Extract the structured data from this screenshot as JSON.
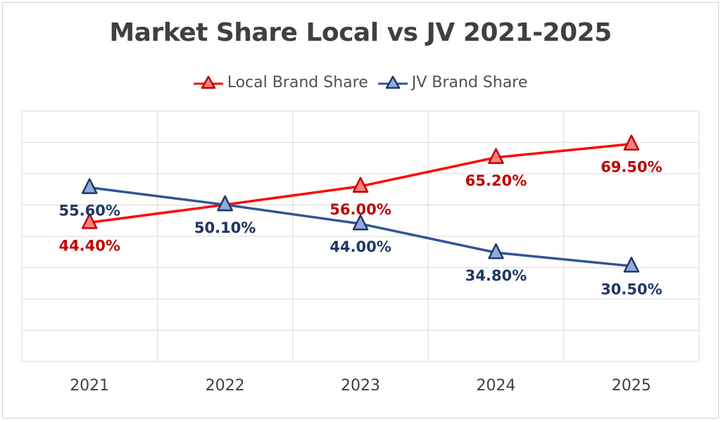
{
  "chart_data": {
    "type": "line",
    "title": "Market Share Local vs JV 2021-2025",
    "categories": [
      "2021",
      "2022",
      "2023",
      "2024",
      "2025"
    ],
    "ylim": [
      0,
      80
    ],
    "grid": true,
    "legend_position": "top",
    "series": [
      {
        "name": "Local Brand Share",
        "values": [
          44.4,
          50.1,
          56.0,
          65.2,
          69.5
        ],
        "labels": [
          "44.40%",
          "50.10%",
          "56.00%",
          "65.20%",
          "69.50%"
        ],
        "color": "#ff0000",
        "marker_fill": "#ff7f7f",
        "marker_stroke": "#c00000",
        "label_color": "#c00000"
      },
      {
        "name": "JV Brand Share",
        "values": [
          55.6,
          50.1,
          44.0,
          34.8,
          30.5
        ],
        "labels": [
          "55.60%",
          "50.10%",
          "44.00%",
          "34.80%",
          "30.50%"
        ],
        "color": "#2f5597",
        "marker_fill": "#8faadc",
        "marker_stroke": "#203864",
        "label_color": "#1f3864"
      }
    ]
  }
}
